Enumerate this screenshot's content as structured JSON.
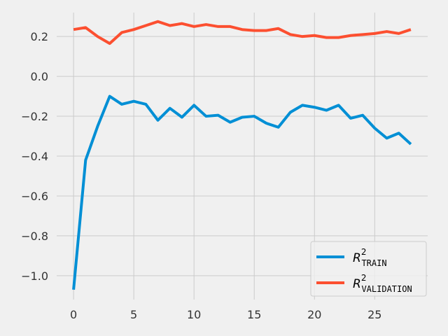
{
  "chart_data": {
    "type": "line",
    "title": "",
    "xlabel": "",
    "ylabel": "",
    "xlim": [
      -1.4,
      29.4
    ],
    "ylim": [
      -1.12,
      0.32
    ],
    "grid": true,
    "legend_position": "lower-right",
    "x_ticks": [
      {
        "value": 0,
        "label": "0"
      },
      {
        "value": 5,
        "label": "5"
      },
      {
        "value": 10,
        "label": "10"
      },
      {
        "value": 15,
        "label": "15"
      },
      {
        "value": 20,
        "label": "20"
      },
      {
        "value": 25,
        "label": "25"
      }
    ],
    "y_ticks": [
      {
        "value": 0.2,
        "label": "0.2"
      },
      {
        "value": 0.0,
        "label": "0.0"
      },
      {
        "value": -0.2,
        "label": "−0.2"
      },
      {
        "value": -0.4,
        "label": "−0.4"
      },
      {
        "value": -0.6,
        "label": "−0.6"
      },
      {
        "value": -0.8,
        "label": "−0.8"
      },
      {
        "value": -1.0,
        "label": "−1.0"
      }
    ],
    "x": [
      0,
      1,
      2,
      3,
      4,
      5,
      6,
      7,
      8,
      9,
      10,
      11,
      12,
      13,
      14,
      15,
      16,
      17,
      18,
      19,
      20,
      21,
      22,
      23,
      24,
      25,
      26,
      27,
      28
    ],
    "series": [
      {
        "legend_base": "R",
        "legend_sup": "2",
        "legend_sub": "TRAIN",
        "color": "#008fd5",
        "values": [
          -1.07,
          -0.42,
          -0.25,
          -0.1,
          -0.14,
          -0.125,
          -0.14,
          -0.22,
          -0.16,
          -0.205,
          -0.145,
          -0.2,
          -0.195,
          -0.23,
          -0.205,
          -0.2,
          -0.235,
          -0.255,
          -0.18,
          -0.145,
          -0.155,
          -0.17,
          -0.145,
          -0.21,
          -0.195,
          -0.26,
          -0.31,
          -0.285,
          -0.34
        ]
      },
      {
        "legend_base": "R",
        "legend_sup": "2",
        "legend_sub": "VALIDATION",
        "color": "#fc4f30",
        "values": [
          0.235,
          0.245,
          0.2,
          0.165,
          0.22,
          0.235,
          0.255,
          0.275,
          0.255,
          0.265,
          0.25,
          0.26,
          0.25,
          0.25,
          0.235,
          0.23,
          0.23,
          0.24,
          0.21,
          0.2,
          0.205,
          0.195,
          0.195,
          0.205,
          0.21,
          0.215,
          0.225,
          0.215,
          0.235
        ]
      }
    ]
  }
}
